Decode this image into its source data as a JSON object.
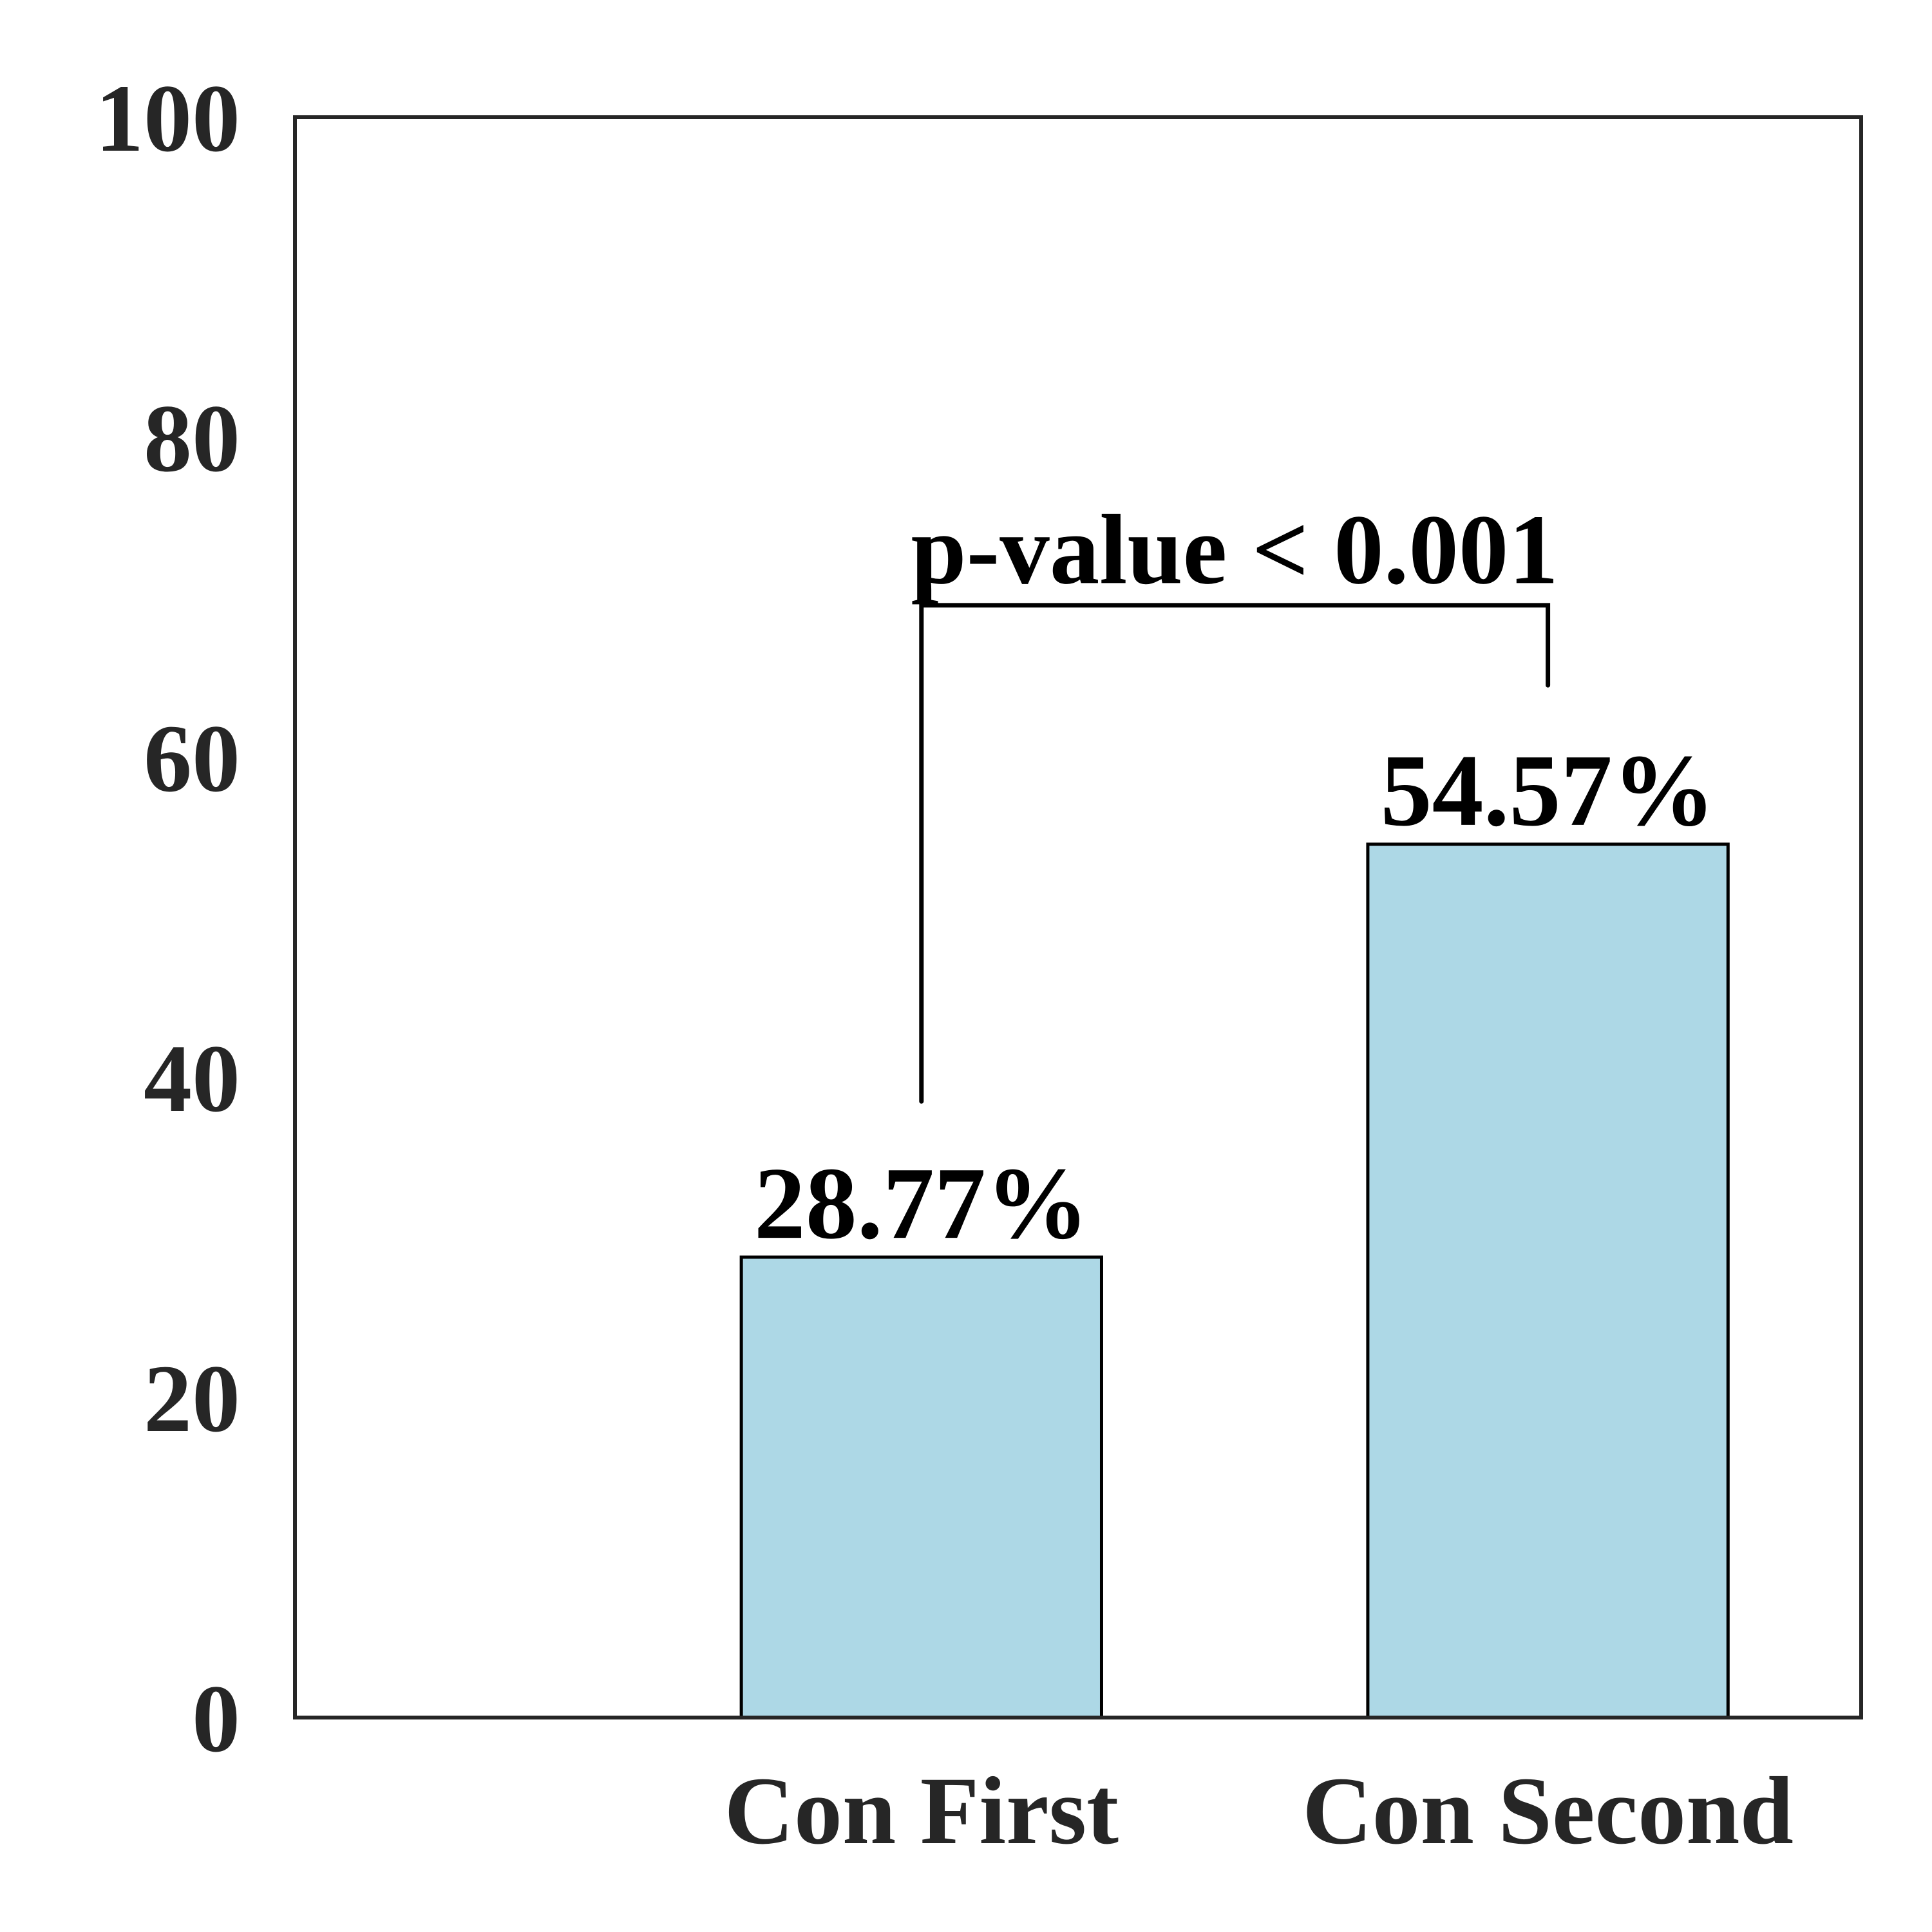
{
  "chart_data": {
    "type": "bar",
    "categories": [
      "Con First",
      "Con Second"
    ],
    "values": [
      28.77,
      54.57
    ],
    "value_labels": [
      "28.77%",
      "54.57%"
    ],
    "title": "",
    "xlabel": "",
    "ylabel": "",
    "ylim": [
      0,
      100
    ],
    "yticks": [
      0,
      20,
      40,
      60,
      80,
      100
    ],
    "ytick_labels": [
      "0",
      "20",
      "40",
      "60",
      "80",
      "100"
    ],
    "grid": false,
    "bar_color": "#add8e6",
    "bar_edge_color": "#000000",
    "axis_color": "#262626",
    "annotation": {
      "text": "p-value < 0.001",
      "from_category": 0,
      "to_category": 1,
      "left_end_y": 38.5,
      "right_end_y": 64.5,
      "bracket_y": 69.5,
      "text_y": 72.5
    }
  }
}
